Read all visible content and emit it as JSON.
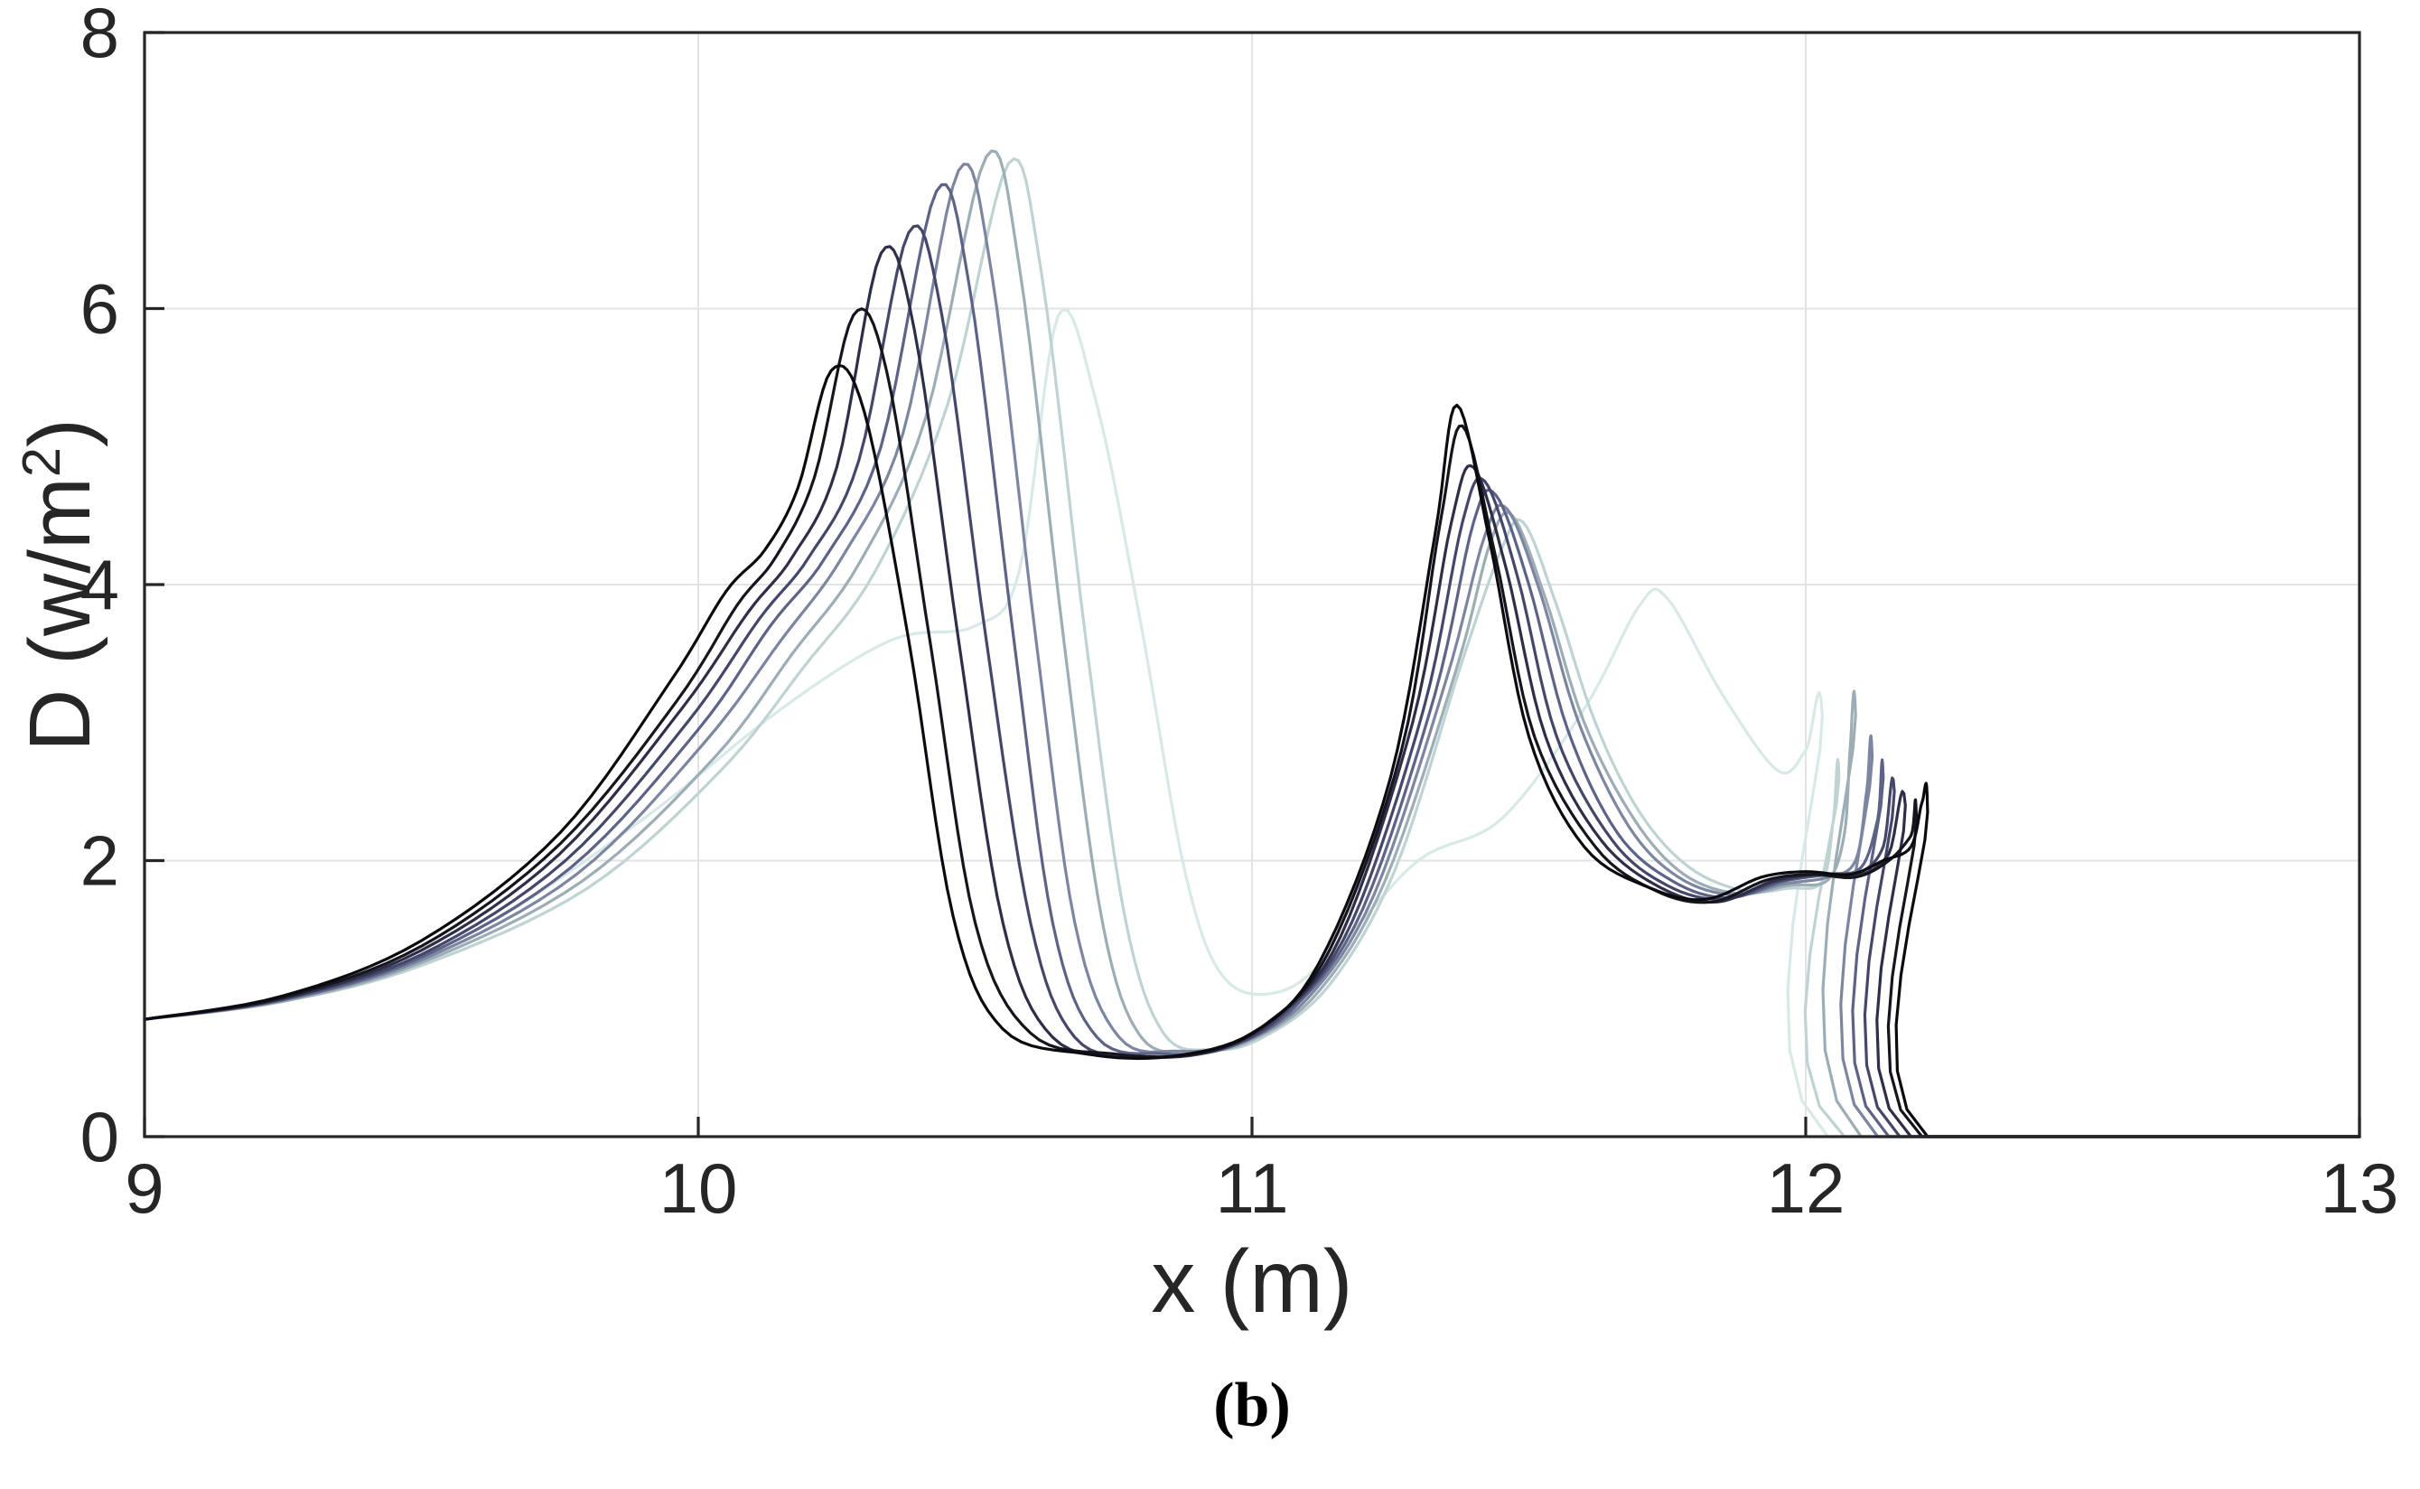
{
  "figure": {
    "caption": "(b)"
  },
  "chart_data": {
    "type": "line",
    "title": "",
    "xlabel": "x (m)",
    "ylabel": "D (w/m²)",
    "ylabel_parts": {
      "prefix": "D (w/m",
      "sup": "2",
      "suffix": ")"
    },
    "xlim": [
      9,
      13
    ],
    "ylim": [
      0,
      8
    ],
    "xticks": [
      "9",
      "10",
      "11",
      "12",
      "13"
    ],
    "yticks": [
      "0",
      "2",
      "4",
      "6",
      "8"
    ],
    "grid": "on",
    "legend": "none",
    "colors": {
      "axis": "#262626",
      "grid": "#e3e3e3",
      "background": "#ffffff"
    },
    "series": [
      {
        "color": "#0a0a0f",
        "points": [
          [
            9,
            0.85
          ],
          [
            9.25,
            1.02
          ],
          [
            9.5,
            1.42
          ],
          [
            9.75,
            2.2
          ],
          [
            9.95,
            3.3
          ],
          [
            10.05,
            3.95
          ],
          [
            10.12,
            4.25
          ],
          [
            10.18,
            4.7
          ],
          [
            10.24,
            5.55
          ],
          [
            10.3,
            5.25
          ],
          [
            10.38,
            3.6
          ],
          [
            10.46,
            1.6
          ],
          [
            10.55,
            0.78
          ],
          [
            10.7,
            0.6
          ],
          [
            10.85,
            0.58
          ],
          [
            11,
            0.75
          ],
          [
            11.12,
            1.25
          ],
          [
            11.25,
            2.6
          ],
          [
            11.33,
            4.35
          ],
          [
            11.37,
            5.3
          ],
          [
            11.43,
            4.3
          ],
          [
            11.5,
            2.9
          ],
          [
            11.6,
            2.1
          ],
          [
            11.72,
            1.8
          ],
          [
            11.82,
            1.72
          ],
          [
            11.92,
            1.88
          ],
          [
            12,
            1.92
          ],
          [
            12.08,
            1.9
          ],
          [
            12.14,
            2
          ],
          [
            12.19,
            2.1
          ],
          [
            12.21,
            2.42
          ],
          [
            12.22,
            2.35
          ],
          [
            12.22,
            0
          ],
          [
            13,
            0
          ]
        ]
      },
      {
        "color": "#15151e",
        "points": [
          [
            9,
            0.85
          ],
          [
            9.25,
            1.01
          ],
          [
            9.5,
            1.38
          ],
          [
            9.75,
            2.12
          ],
          [
            9.96,
            3.15
          ],
          [
            10.07,
            3.85
          ],
          [
            10.14,
            4.2
          ],
          [
            10.21,
            4.78
          ],
          [
            10.28,
            5.95
          ],
          [
            10.34,
            5.55
          ],
          [
            10.42,
            3.55
          ],
          [
            10.5,
            1.55
          ],
          [
            10.6,
            0.75
          ],
          [
            10.75,
            0.6
          ],
          [
            10.9,
            0.6
          ],
          [
            11.02,
            0.8
          ],
          [
            11.14,
            1.35
          ],
          [
            11.27,
            2.8
          ],
          [
            11.34,
            4.45
          ],
          [
            11.38,
            5.15
          ],
          [
            11.44,
            4.2
          ],
          [
            11.51,
            2.9
          ],
          [
            11.62,
            2.1
          ],
          [
            11.73,
            1.78
          ],
          [
            11.83,
            1.7
          ],
          [
            11.93,
            1.86
          ],
          [
            12.01,
            1.9
          ],
          [
            12.09,
            1.88
          ],
          [
            12.15,
            2
          ],
          [
            12.19,
            2.18
          ],
          [
            12.2,
            2.3
          ],
          [
            12.21,
            0
          ],
          [
            13,
            0
          ]
        ]
      },
      {
        "color": "#2e2e48",
        "points": [
          [
            9,
            0.85
          ],
          [
            9.25,
            1
          ],
          [
            9.5,
            1.35
          ],
          [
            9.75,
            2.05
          ],
          [
            9.97,
            3.1
          ],
          [
            10.09,
            3.8
          ],
          [
            10.17,
            4.2
          ],
          [
            10.25,
            4.85
          ],
          [
            10.33,
            6.4
          ],
          [
            10.39,
            5.85
          ],
          [
            10.47,
            3.6
          ],
          [
            10.55,
            1.55
          ],
          [
            10.64,
            0.72
          ],
          [
            10.78,
            0.58
          ],
          [
            10.92,
            0.62
          ],
          [
            11.04,
            0.85
          ],
          [
            11.16,
            1.45
          ],
          [
            11.29,
            3
          ],
          [
            11.36,
            4.45
          ],
          [
            11.4,
            4.85
          ],
          [
            11.46,
            4.1
          ],
          [
            11.53,
            2.9
          ],
          [
            11.63,
            2.15
          ],
          [
            11.74,
            1.8
          ],
          [
            11.84,
            1.7
          ],
          [
            11.94,
            1.85
          ],
          [
            12.02,
            1.9
          ],
          [
            12.1,
            1.9
          ],
          [
            12.15,
            2.05
          ],
          [
            12.18,
            2.4
          ],
          [
            12.19,
            0
          ],
          [
            13,
            0
          ]
        ]
      },
      {
        "color": "#45476a",
        "points": [
          [
            9,
            0.85
          ],
          [
            9.25,
            1
          ],
          [
            9.5,
            1.32
          ],
          [
            9.76,
            2
          ],
          [
            9.98,
            3
          ],
          [
            10.11,
            3.75
          ],
          [
            10.2,
            4.2
          ],
          [
            10.29,
            4.9
          ],
          [
            10.38,
            6.55
          ],
          [
            10.44,
            5.95
          ],
          [
            10.52,
            3.6
          ],
          [
            10.6,
            1.55
          ],
          [
            10.68,
            0.72
          ],
          [
            10.8,
            0.58
          ],
          [
            10.94,
            0.63
          ],
          [
            11.06,
            0.9
          ],
          [
            11.18,
            1.55
          ],
          [
            11.31,
            3.1
          ],
          [
            11.38,
            4.45
          ],
          [
            11.42,
            4.75
          ],
          [
            11.48,
            4.05
          ],
          [
            11.55,
            2.9
          ],
          [
            11.65,
            2.15
          ],
          [
            11.75,
            1.82
          ],
          [
            11.85,
            1.72
          ],
          [
            11.95,
            1.85
          ],
          [
            12.03,
            1.9
          ],
          [
            12.1,
            1.92
          ],
          [
            12.14,
            2.1
          ],
          [
            12.16,
            2.5
          ],
          [
            12.17,
            0
          ],
          [
            13,
            0
          ]
        ]
      },
      {
        "color": "#5d6287",
        "points": [
          [
            9,
            0.85
          ],
          [
            9.25,
            0.99
          ],
          [
            9.5,
            1.3
          ],
          [
            9.77,
            1.95
          ],
          [
            10,
            2.95
          ],
          [
            10.13,
            3.7
          ],
          [
            10.23,
            4.2
          ],
          [
            10.33,
            5
          ],
          [
            10.43,
            6.85
          ],
          [
            10.49,
            6.15
          ],
          [
            10.57,
            3.6
          ],
          [
            10.64,
            1.55
          ],
          [
            10.72,
            0.72
          ],
          [
            10.84,
            0.6
          ],
          [
            10.96,
            0.65
          ],
          [
            11.08,
            0.95
          ],
          [
            11.2,
            1.65
          ],
          [
            11.33,
            3.2
          ],
          [
            11.4,
            4.45
          ],
          [
            11.44,
            4.65
          ],
          [
            11.5,
            4
          ],
          [
            11.57,
            2.95
          ],
          [
            11.66,
            2.2
          ],
          [
            11.76,
            1.85
          ],
          [
            11.86,
            1.73
          ],
          [
            11.96,
            1.85
          ],
          [
            12.04,
            1.9
          ],
          [
            12.1,
            1.95
          ],
          [
            12.13,
            2.3
          ],
          [
            12.14,
            2.6
          ],
          [
            12.15,
            0
          ],
          [
            13,
            0
          ]
        ]
      },
      {
        "color": "#7d86a0",
        "points": [
          [
            9,
            0.85
          ],
          [
            9.25,
            0.99
          ],
          [
            9.5,
            1.28
          ],
          [
            9.78,
            1.9
          ],
          [
            10.01,
            2.85
          ],
          [
            10.15,
            3.6
          ],
          [
            10.26,
            4.2
          ],
          [
            10.37,
            5.1
          ],
          [
            10.47,
            7
          ],
          [
            10.53,
            6.25
          ],
          [
            10.61,
            3.6
          ],
          [
            10.68,
            1.55
          ],
          [
            10.76,
            0.72
          ],
          [
            10.87,
            0.62
          ],
          [
            10.98,
            0.68
          ],
          [
            11.1,
            1
          ],
          [
            11.22,
            1.75
          ],
          [
            11.35,
            3.3
          ],
          [
            11.42,
            4.35
          ],
          [
            11.46,
            4.55
          ],
          [
            11.52,
            3.95
          ],
          [
            11.59,
            3
          ],
          [
            11.68,
            2.25
          ],
          [
            11.77,
            1.88
          ],
          [
            11.87,
            1.75
          ],
          [
            11.96,
            1.83
          ],
          [
            12.04,
            1.88
          ],
          [
            12.09,
            2
          ],
          [
            12.11,
            2.5
          ],
          [
            12.12,
            2.75
          ],
          [
            12.13,
            0
          ],
          [
            13,
            0
          ]
        ]
      },
      {
        "color": "#9dadb5",
        "points": [
          [
            9,
            0.85
          ],
          [
            9.25,
            0.98
          ],
          [
            9.5,
            1.26
          ],
          [
            9.79,
            1.85
          ],
          [
            10.03,
            2.75
          ],
          [
            10.17,
            3.5
          ],
          [
            10.29,
            4.15
          ],
          [
            10.41,
            5.2
          ],
          [
            10.52,
            7.1
          ],
          [
            10.58,
            6.3
          ],
          [
            10.66,
            3.6
          ],
          [
            10.73,
            1.55
          ],
          [
            10.8,
            0.72
          ],
          [
            10.9,
            0.62
          ],
          [
            11,
            0.7
          ],
          [
            11.12,
            1.05
          ],
          [
            11.24,
            1.85
          ],
          [
            11.37,
            3.4
          ],
          [
            11.43,
            4.3
          ],
          [
            11.47,
            4.5
          ],
          [
            11.53,
            3.9
          ],
          [
            11.6,
            3
          ],
          [
            11.69,
            2.3
          ],
          [
            11.78,
            1.9
          ],
          [
            11.88,
            1.76
          ],
          [
            11.97,
            1.82
          ],
          [
            12.04,
            1.86
          ],
          [
            12.07,
            2.2
          ],
          [
            12.08,
            2.8
          ],
          [
            12.09,
            3.05
          ],
          [
            12.1,
            0
          ],
          [
            13,
            0
          ]
        ]
      },
      {
        "color": "#bfd3d3",
        "points": [
          [
            9,
            0.85
          ],
          [
            9.25,
            0.98
          ],
          [
            9.5,
            1.24
          ],
          [
            9.8,
            1.8
          ],
          [
            10.04,
            2.65
          ],
          [
            10.19,
            3.4
          ],
          [
            10.32,
            4.1
          ],
          [
            10.45,
            5.3
          ],
          [
            10.56,
            7.05
          ],
          [
            10.62,
            6.25
          ],
          [
            10.7,
            3.6
          ],
          [
            10.77,
            1.6
          ],
          [
            10.84,
            0.75
          ],
          [
            10.93,
            0.63
          ],
          [
            11.02,
            0.72
          ],
          [
            11.14,
            1.1
          ],
          [
            11.26,
            1.95
          ],
          [
            11.38,
            3.45
          ],
          [
            11.45,
            4.25
          ],
          [
            11.49,
            4.45
          ],
          [
            11.55,
            3.85
          ],
          [
            11.62,
            3
          ],
          [
            11.7,
            2.35
          ],
          [
            11.79,
            1.95
          ],
          [
            11.89,
            1.78
          ],
          [
            11.97,
            1.8
          ],
          [
            12.03,
            1.85
          ],
          [
            12.05,
            2.3
          ],
          [
            12.06,
            2.6
          ],
          [
            12.07,
            0
          ],
          [
            13,
            0
          ]
        ]
      },
      {
        "color": "#d9e9e7",
        "points": [
          [
            9,
            0.85
          ],
          [
            9.3,
            1.05
          ],
          [
            9.6,
            1.5
          ],
          [
            9.9,
            2.3
          ],
          [
            10.15,
            3.1
          ],
          [
            10.35,
            3.6
          ],
          [
            10.5,
            3.7
          ],
          [
            10.58,
            4.1
          ],
          [
            10.65,
            5.95
          ],
          [
            10.72,
            5.3
          ],
          [
            10.8,
            3.7
          ],
          [
            10.88,
            1.9
          ],
          [
            10.95,
            1.15
          ],
          [
            11.05,
            1.05
          ],
          [
            11.15,
            1.35
          ],
          [
            11.3,
            2
          ],
          [
            11.45,
            2.3
          ],
          [
            11.6,
            3.1
          ],
          [
            11.7,
            3.85
          ],
          [
            11.75,
            3.9
          ],
          [
            11.85,
            3.2
          ],
          [
            11.95,
            2.65
          ],
          [
            12,
            2.8
          ],
          [
            12.03,
            3.05
          ],
          [
            12.04,
            0
          ],
          [
            13,
            0
          ]
        ]
      }
    ]
  }
}
